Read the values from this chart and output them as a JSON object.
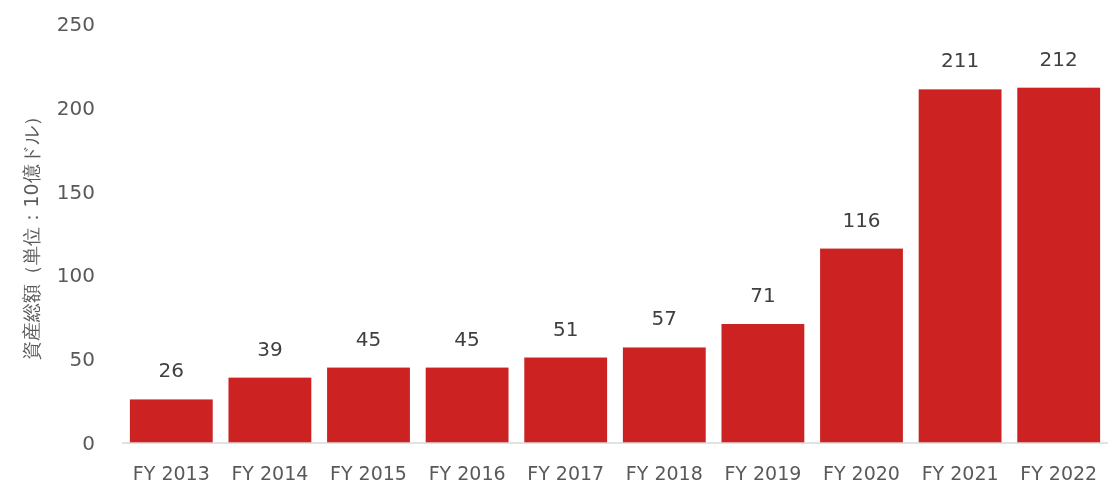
{
  "chart_data": {
    "type": "bar",
    "ylabel": "資産総額（単位：10億ドル）",
    "categories": [
      "FY 2013",
      "FY 2014",
      "FY 2015",
      "FY 2016",
      "FY 2017",
      "FY 2018",
      "FY 2019",
      "FY 2020",
      "FY 2021",
      "FY 2022"
    ],
    "values": [
      26,
      39,
      45,
      45,
      51,
      57,
      71,
      116,
      211,
      212
    ],
    "color": "#cc2222",
    "ylim": [
      0,
      250
    ],
    "yticks": [
      0,
      50,
      100,
      150,
      200,
      250
    ],
    "data_labels": true,
    "grid": false
  }
}
